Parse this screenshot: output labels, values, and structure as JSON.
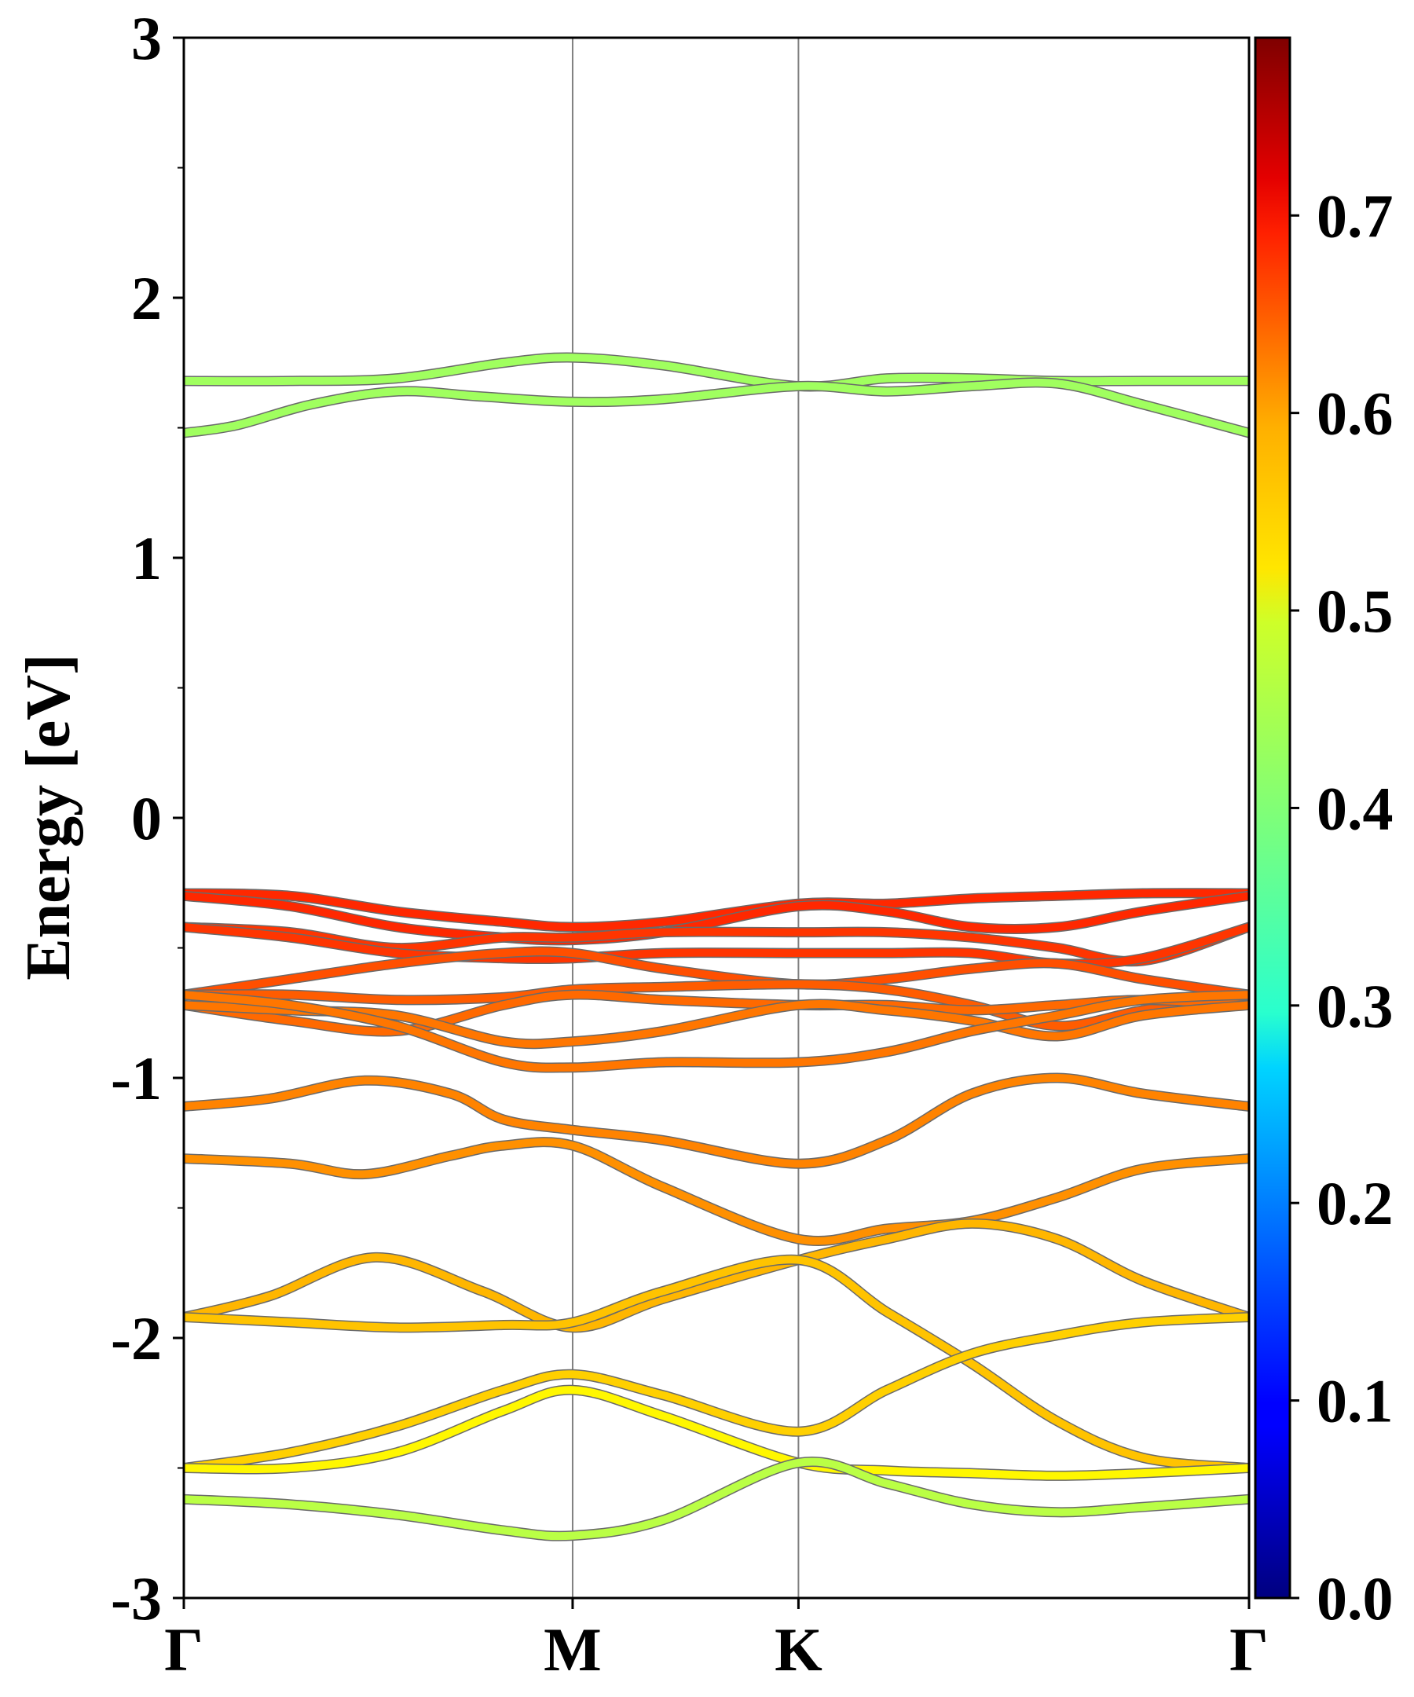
{
  "chart_data": {
    "type": "line",
    "title": "",
    "ylabel": "Energy [eV]",
    "xlabel": "",
    "ylim": [
      -3,
      3
    ],
    "y_ticks": [
      -3,
      -2,
      -1,
      0,
      1,
      2,
      3
    ],
    "y_tick_labels": [
      "-3",
      "-2",
      "-1",
      "0",
      "1",
      "2",
      "3"
    ],
    "y_minor_step": 0.5,
    "k_points": [
      {
        "label": "Γ",
        "x": 0
      },
      {
        "label": "M",
        "x": 0.365
      },
      {
        "label": "K",
        "x": 0.577
      },
      {
        "label": "Γ",
        "x": 1.0
      }
    ],
    "grid": "vertical lines at high-symmetry points",
    "colorbar": {
      "colormap": "jet",
      "range": [
        0.0,
        0.79
      ],
      "ticks": [
        "0.0",
        "0.1",
        "0.2",
        "0.3",
        "0.4",
        "0.5",
        "0.6",
        "0.7"
      ],
      "tick_values": [
        0.0,
        0.1,
        0.2,
        0.3,
        0.4,
        0.5,
        0.6,
        0.7
      ]
    },
    "series": [
      {
        "weight": 0.42,
        "x": [
          0,
          0.1,
          0.2,
          0.3,
          0.365,
          0.45,
          0.577,
          0.66,
          0.74,
          0.82,
          0.9,
          1.0
        ],
        "y": [
          1.68,
          1.68,
          1.69,
          1.75,
          1.77,
          1.74,
          1.66,
          1.69,
          1.69,
          1.68,
          1.68,
          1.68
        ]
      },
      {
        "weight": 0.42,
        "x": [
          0,
          0.05,
          0.12,
          0.2,
          0.28,
          0.365,
          0.45,
          0.577,
          0.66,
          0.74,
          0.82,
          0.9,
          1.0
        ],
        "y": [
          1.48,
          1.51,
          1.59,
          1.64,
          1.62,
          1.6,
          1.61,
          1.66,
          1.64,
          1.66,
          1.67,
          1.59,
          1.48
        ]
      },
      {
        "weight": 0.66,
        "x": [
          0,
          0.1,
          0.2,
          0.3,
          0.365,
          0.45,
          0.577,
          0.66,
          0.74,
          0.82,
          0.9,
          1.0
        ],
        "y": [
          -0.29,
          -0.3,
          -0.36,
          -0.4,
          -0.42,
          -0.4,
          -0.33,
          -0.33,
          -0.31,
          -0.3,
          -0.29,
          -0.29
        ]
      },
      {
        "weight": 0.66,
        "x": [
          0,
          0.1,
          0.2,
          0.3,
          0.365,
          0.45,
          0.577,
          0.66,
          0.74,
          0.82,
          0.9,
          1.0
        ],
        "y": [
          -0.3,
          -0.34,
          -0.42,
          -0.46,
          -0.47,
          -0.44,
          -0.34,
          -0.36,
          -0.42,
          -0.42,
          -0.36,
          -0.3
        ]
      },
      {
        "weight": 0.65,
        "x": [
          0,
          0.1,
          0.2,
          0.3,
          0.365,
          0.45,
          0.577,
          0.66,
          0.74,
          0.82,
          0.9,
          1.0
        ],
        "y": [
          -0.42,
          -0.44,
          -0.5,
          -0.46,
          -0.46,
          -0.44,
          -0.44,
          -0.44,
          -0.46,
          -0.5,
          -0.55,
          -0.42
        ]
      },
      {
        "weight": 0.65,
        "x": [
          0,
          0.1,
          0.2,
          0.3,
          0.365,
          0.45,
          0.577,
          0.66,
          0.74,
          0.82,
          0.9,
          1.0
        ],
        "y": [
          -0.42,
          -0.46,
          -0.52,
          -0.54,
          -0.54,
          -0.52,
          -0.52,
          -0.52,
          -0.52,
          -0.56,
          -0.54,
          -0.42
        ]
      },
      {
        "weight": 0.63,
        "x": [
          0,
          0.1,
          0.2,
          0.3,
          0.365,
          0.45,
          0.577,
          0.66,
          0.74,
          0.82,
          0.9,
          1.0
        ],
        "y": [
          -0.68,
          -0.62,
          -0.56,
          -0.52,
          -0.52,
          -0.58,
          -0.64,
          -0.62,
          -0.58,
          -0.56,
          -0.62,
          -0.68
        ]
      },
      {
        "weight": 0.62,
        "x": [
          0,
          0.1,
          0.2,
          0.3,
          0.365,
          0.45,
          0.577,
          0.66,
          0.74,
          0.82,
          0.9,
          1.0
        ],
        "y": [
          -0.68,
          -0.68,
          -0.7,
          -0.69,
          -0.66,
          -0.65,
          -0.64,
          -0.66,
          -0.72,
          -0.8,
          -0.74,
          -0.68
        ]
      },
      {
        "weight": 0.61,
        "x": [
          0,
          0.1,
          0.2,
          0.3,
          0.365,
          0.45,
          0.577,
          0.66,
          0.74,
          0.82,
          0.9,
          1.0
        ],
        "y": [
          -0.72,
          -0.78,
          -0.82,
          -0.72,
          -0.68,
          -0.7,
          -0.72,
          -0.72,
          -0.74,
          -0.72,
          -0.7,
          -0.72
        ]
      },
      {
        "weight": 0.6,
        "x": [
          0,
          0.1,
          0.2,
          0.3,
          0.365,
          0.45,
          0.577,
          0.66,
          0.74,
          0.82,
          0.9,
          1.0
        ],
        "y": [
          -0.72,
          -0.74,
          -0.76,
          -0.86,
          -0.86,
          -0.82,
          -0.72,
          -0.74,
          -0.78,
          -0.84,
          -0.76,
          -0.72
        ]
      },
      {
        "weight": 0.6,
        "x": [
          0,
          0.1,
          0.2,
          0.3,
          0.365,
          0.45,
          0.577,
          0.66,
          0.74,
          0.82,
          0.9,
          1.0
        ],
        "y": [
          -0.68,
          -0.72,
          -0.8,
          -0.94,
          -0.96,
          -0.94,
          -0.94,
          -0.9,
          -0.82,
          -0.76,
          -0.7,
          -0.68
        ]
      },
      {
        "weight": 0.59,
        "x": [
          0,
          0.08,
          0.17,
          0.25,
          0.3,
          0.365,
          0.45,
          0.577,
          0.66,
          0.74,
          0.82,
          0.9,
          1.0
        ],
        "y": [
          -1.11,
          -1.08,
          -1.01,
          -1.06,
          -1.16,
          -1.2,
          -1.24,
          -1.33,
          -1.24,
          -1.06,
          -1.0,
          -1.06,
          -1.11
        ]
      },
      {
        "weight": 0.58,
        "x": [
          0,
          0.1,
          0.17,
          0.25,
          0.3,
          0.365,
          0.45,
          0.577,
          0.66,
          0.74,
          0.82,
          0.9,
          1.0
        ],
        "y": [
          -1.31,
          -1.33,
          -1.37,
          -1.3,
          -1.26,
          -1.26,
          -1.42,
          -1.62,
          -1.58,
          -1.55,
          -1.46,
          -1.35,
          -1.31
        ]
      },
      {
        "weight": 0.55,
        "x": [
          0,
          0.08,
          0.18,
          0.28,
          0.365,
          0.45,
          0.577,
          0.66,
          0.74,
          0.82,
          0.9,
          1.0
        ],
        "y": [
          -1.92,
          -1.84,
          -1.69,
          -1.82,
          -1.96,
          -1.85,
          -1.7,
          -1.62,
          -1.56,
          -1.62,
          -1.78,
          -1.92
        ]
      },
      {
        "weight": 0.54,
        "x": [
          0,
          0.1,
          0.2,
          0.3,
          0.365,
          0.45,
          0.577,
          0.66,
          0.74,
          0.82,
          0.9,
          1.0
        ],
        "y": [
          -1.92,
          -1.94,
          -1.96,
          -1.95,
          -1.94,
          -1.82,
          -1.7,
          -1.9,
          -2.1,
          -2.32,
          -2.46,
          -2.5
        ]
      },
      {
        "weight": 0.53,
        "x": [
          0,
          0.1,
          0.2,
          0.3,
          0.365,
          0.45,
          0.577,
          0.66,
          0.74,
          0.82,
          0.9,
          1.0
        ],
        "y": [
          -2.5,
          -2.44,
          -2.34,
          -2.2,
          -2.14,
          -2.22,
          -2.36,
          -2.2,
          -2.06,
          -1.99,
          -1.94,
          -1.92
        ]
      },
      {
        "weight": 0.5,
        "x": [
          0,
          0.1,
          0.2,
          0.3,
          0.365,
          0.45,
          0.577,
          0.66,
          0.74,
          0.82,
          0.9,
          1.0
        ],
        "y": [
          -2.5,
          -2.5,
          -2.44,
          -2.28,
          -2.2,
          -2.3,
          -2.48,
          -2.51,
          -2.52,
          -2.53,
          -2.52,
          -2.5
        ]
      },
      {
        "weight": 0.44,
        "x": [
          0,
          0.1,
          0.2,
          0.3,
          0.365,
          0.45,
          0.577,
          0.66,
          0.74,
          0.82,
          0.9,
          1.0
        ],
        "y": [
          -2.62,
          -2.64,
          -2.68,
          -2.74,
          -2.76,
          -2.7,
          -2.48,
          -2.56,
          -2.64,
          -2.67,
          -2.65,
          -2.62
        ]
      }
    ]
  }
}
